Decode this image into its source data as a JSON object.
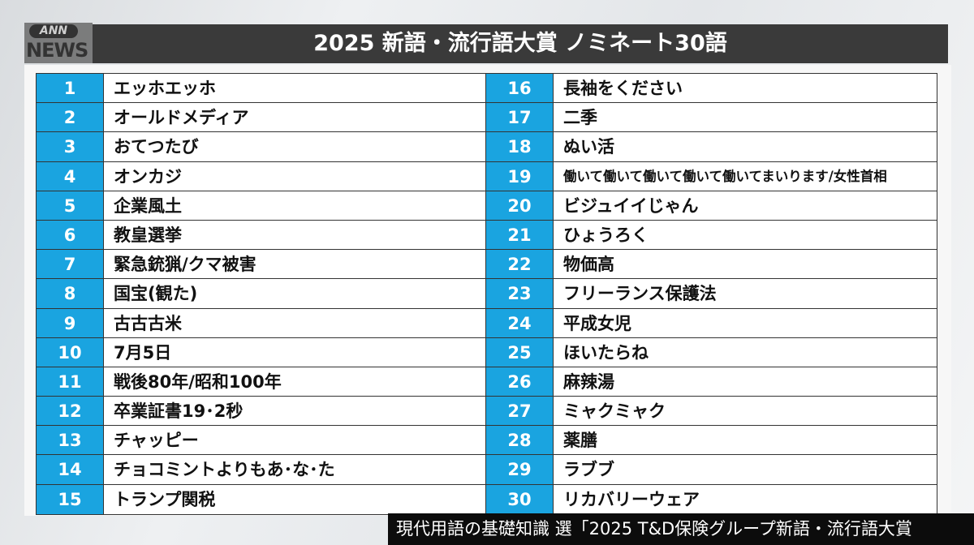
{
  "logo": {
    "ann": "ANN",
    "news": "NEWS"
  },
  "title": "2025 新語・流行語大賞 ノミネート30語",
  "left_items": [
    {
      "num": "1",
      "word": "エッホエッホ"
    },
    {
      "num": "2",
      "word": "オールドメディア"
    },
    {
      "num": "3",
      "word": "おてつたび"
    },
    {
      "num": "4",
      "word": "オンカジ"
    },
    {
      "num": "5",
      "word": "企業風土"
    },
    {
      "num": "6",
      "word": "教皇選挙"
    },
    {
      "num": "7",
      "word": "緊急銃猟/クマ被害"
    },
    {
      "num": "8",
      "word": "国宝(観た)"
    },
    {
      "num": "9",
      "word": "古古古米"
    },
    {
      "num": "10",
      "word": "7月5日"
    },
    {
      "num": "11",
      "word": "戦後80年/昭和100年"
    },
    {
      "num": "12",
      "word": "卒業証書19･2秒"
    },
    {
      "num": "13",
      "word": "チャッピー"
    },
    {
      "num": "14",
      "word": "チョコミントよりもあ･な･た"
    },
    {
      "num": "15",
      "word": "トランプ関税"
    }
  ],
  "right_items": [
    {
      "num": "16",
      "word": "長袖をください"
    },
    {
      "num": "17",
      "word": "二季"
    },
    {
      "num": "18",
      "word": "ぬい活"
    },
    {
      "num": "19",
      "word": "働いて働いて働いて働いて働いてまいります/女性首相"
    },
    {
      "num": "20",
      "word": "ビジュイイじゃん"
    },
    {
      "num": "21",
      "word": "ひょうろく"
    },
    {
      "num": "22",
      "word": "物価高"
    },
    {
      "num": "23",
      "word": "フリーランス保護法"
    },
    {
      "num": "24",
      "word": "平成女児"
    },
    {
      "num": "25",
      "word": "ほいたらね"
    },
    {
      "num": "26",
      "word": "麻辣湯"
    },
    {
      "num": "27",
      "word": "ミャクミャク"
    },
    {
      "num": "28",
      "word": "薬膳"
    },
    {
      "num": "29",
      "word": "ラブブ"
    },
    {
      "num": "30",
      "word": "リカバリーウェア"
    }
  ],
  "caption": "現代用語の基礎知識 選「2025 T&D保険グループ新語・流行語大賞",
  "colors": {
    "number_cell": "#1aa4e0",
    "title_bar": "#3a3a3a",
    "caption_bar": "#0c0c0c"
  }
}
